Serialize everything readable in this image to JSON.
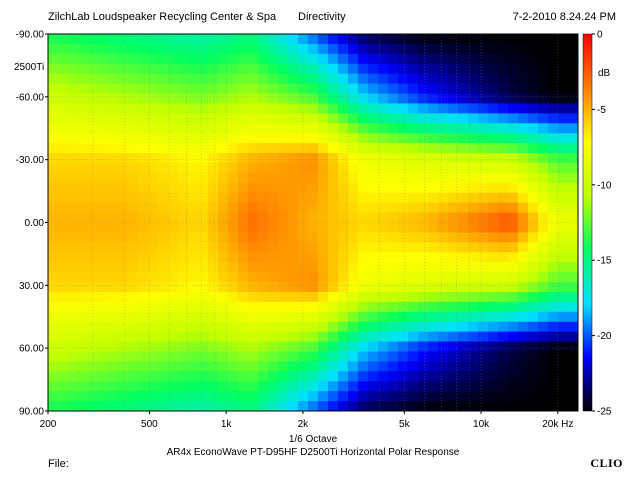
{
  "header": {
    "left": "ZilchLab Loudspeaker Recycling Center & Spa",
    "center": "Directivity",
    "right": "7-2-2010 8.24.24 PM"
  },
  "footer": {
    "file_label": "File:",
    "brand": "CLIO"
  },
  "chart_data": {
    "type": "heatmap",
    "title": "AR4x EconoWave PT-D95HF D2500Ti Horizontal Polar Response",
    "subtitle": "1/6 Octave",
    "y_side_label": "2500Ti",
    "xlabel": "",
    "ylabel": "",
    "x_scale": "log",
    "x_unit": "Hz",
    "xlim": [
      200,
      24000
    ],
    "ylim": [
      90,
      -90
    ],
    "x_ticks": [
      {
        "value": 200,
        "label": "200"
      },
      {
        "value": 500,
        "label": "500"
      },
      {
        "value": 1000,
        "label": "1k"
      },
      {
        "value": 2000,
        "label": "2k"
      },
      {
        "value": 5000,
        "label": "5k"
      },
      {
        "value": 10000,
        "label": "10k"
      },
      {
        "value": 20000,
        "label": "20k Hz"
      }
    ],
    "y_ticks": [
      {
        "value": -90,
        "label": "-90.00"
      },
      {
        "value": -60,
        "label": "-60.00"
      },
      {
        "value": -30,
        "label": "-30.00"
      },
      {
        "value": 0,
        "label": "0.00"
      },
      {
        "value": 30,
        "label": "30.00"
      },
      {
        "value": 60,
        "label": "60.00"
      },
      {
        "value": 90,
        "label": "90.00"
      }
    ],
    "colorbar": {
      "unit": "dB",
      "range": [
        -25,
        0
      ],
      "ticks": [
        {
          "value": 0,
          "label": "0"
        },
        {
          "value": -5,
          "label": "-5"
        },
        {
          "value": -10,
          "label": "-10"
        },
        {
          "value": -15,
          "label": "-15"
        },
        {
          "value": -20,
          "label": "-20"
        },
        {
          "value": -25,
          "label": "-25"
        }
      ],
      "colors": [
        "#000000",
        "#0000ff",
        "#00e0ff",
        "#00ff60",
        "#c0ff00",
        "#ffff00",
        "#ff8000",
        "#ff0000"
      ]
    },
    "frequencies": [
      200,
      400,
      800,
      1250,
      2200,
      3500,
      6000,
      13000,
      20000
    ],
    "angles": [
      -90,
      -60,
      -30,
      0,
      30,
      60,
      90
    ],
    "values_db": [
      [
        -14,
        -15,
        -16,
        -15,
        -20,
        -24,
        -25,
        -25,
        -25
      ],
      [
        -10,
        -11,
        -12,
        -11,
        -13,
        -18,
        -21,
        -24,
        -25
      ],
      [
        -6,
        -6,
        -7,
        -5,
        -4,
        -8,
        -9,
        -10,
        -13
      ],
      [
        -5,
        -5,
        -6,
        -3,
        -5,
        -6,
        -5,
        -2,
        -8
      ],
      [
        -6,
        -6,
        -7,
        -5,
        -4,
        -8,
        -9,
        -10,
        -13
      ],
      [
        -10,
        -11,
        -12,
        -11,
        -13,
        -18,
        -21,
        -24,
        -25
      ],
      [
        -14,
        -15,
        -16,
        -15,
        -20,
        -24,
        -25,
        -25,
        -25
      ]
    ]
  }
}
